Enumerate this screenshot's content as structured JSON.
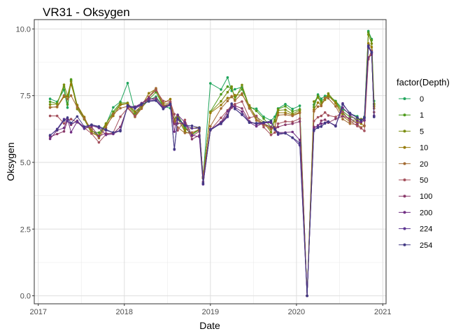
{
  "chart_data": {
    "type": "line",
    "title": "VR31  -  Oksygen",
    "xlabel": "Date",
    "ylabel": "Oksygen",
    "xlim": [
      "2016-12-15",
      "2021-01-15"
    ],
    "ylim": [
      -0.3,
      10.35
    ],
    "x_ticks": [
      "2017-01-01",
      "2018-01-01",
      "2019-01-01",
      "2020-01-01",
      "2021-01-01"
    ],
    "x_tick_labels": [
      "2017",
      "2018",
      "2019",
      "2020",
      "2021"
    ],
    "y_ticks": [
      0,
      2.5,
      5,
      7.5,
      10
    ],
    "y_tick_labels": [
      "0.0",
      "2.5",
      "5.0",
      "7.5",
      "10.0"
    ],
    "grid": true,
    "legend": {
      "title": "factor(Depth)",
      "position": "right"
    },
    "x": [
      "2017-02-20",
      "2017-03-22",
      "2017-04-20",
      "2017-05-05",
      "2017-05-20",
      "2017-06-15",
      "2017-07-15",
      "2017-08-15",
      "2017-09-15",
      "2017-10-15",
      "2017-11-15",
      "2017-12-15",
      "2018-01-15",
      "2018-02-15",
      "2018-03-15",
      "2018-04-15",
      "2018-05-15",
      "2018-06-15",
      "2018-07-15",
      "2018-08-01",
      "2018-08-15",
      "2018-09-15",
      "2018-10-15",
      "2018-11-15",
      "2018-12-01",
      "2019-01-01",
      "2019-02-15",
      "2019-03-15",
      "2019-04-01",
      "2019-04-15",
      "2019-05-15",
      "2019-06-15",
      "2019-07-15",
      "2019-08-15",
      "2019-09-15",
      "2019-10-01",
      "2019-10-15",
      "2019-11-15",
      "2019-12-15",
      "2020-01-15",
      "2020-02-15",
      "2020-03-15",
      "2020-04-01",
      "2020-04-15",
      "2020-05-01",
      "2020-05-15",
      "2020-06-15",
      "2020-07-15",
      "2020-08-15",
      "2020-09-15",
      "2020-10-01",
      "2020-10-15",
      "2020-11-01",
      "2020-11-15",
      "2020-11-25"
    ],
    "series": [
      {
        "name": "0",
        "color": "#1fa55c",
        "values": [
          7.38,
          7.27,
          7.72,
          7.05,
          8.07,
          7.15,
          6.63,
          6.21,
          6.0,
          6.42,
          7.06,
          7.27,
          7.97,
          6.9,
          7.05,
          7.34,
          7.46,
          7.1,
          7.03,
          6.62,
          6.78,
          6.31,
          6.04,
          6.22,
          4.47,
          7.96,
          7.73,
          8.18,
          7.68,
          7.74,
          7.82,
          7.05,
          7.01,
          6.71,
          6.57,
          6.71,
          7.02,
          7.18,
          7.0,
          7.12,
          0.0,
          7.16,
          7.54,
          7.38,
          7.49,
          7.51,
          7.3,
          7.0,
          6.82,
          6.73,
          6.5,
          6.71,
          9.92,
          9.62,
          7.3
        ]
      },
      {
        "name": "1",
        "color": "#4e9b1c",
        "values": [
          7.27,
          7.21,
          7.84,
          7.17,
          8.11,
          7.12,
          6.66,
          6.16,
          6.11,
          6.43,
          6.9,
          7.23,
          7.23,
          6.83,
          7.05,
          7.36,
          7.63,
          7.1,
          7.14,
          6.61,
          6.77,
          6.27,
          6.07,
          6.21,
          4.4,
          6.9,
          7.55,
          7.84,
          7.77,
          7.46,
          7.74,
          7.11,
          6.93,
          6.64,
          6.33,
          6.6,
          7.0,
          7.1,
          6.91,
          6.99,
          0.0,
          7.07,
          7.49,
          7.29,
          7.42,
          7.48,
          7.28,
          6.92,
          6.7,
          6.64,
          6.59,
          6.66,
          9.87,
          9.58,
          7.2
        ]
      },
      {
        "name": "5",
        "color": "#7a8d0f",
        "values": [
          7.17,
          7.18,
          7.91,
          7.5,
          8.03,
          7.0,
          6.61,
          6.09,
          6.01,
          6.46,
          6.83,
          7.18,
          7.2,
          6.74,
          7.06,
          7.45,
          7.72,
          7.12,
          7.2,
          6.49,
          6.64,
          6.15,
          6.05,
          6.26,
          4.42,
          6.88,
          7.29,
          7.63,
          7.84,
          7.35,
          7.9,
          7.08,
          6.7,
          6.51,
          6.13,
          6.54,
          6.95,
          6.97,
          6.82,
          6.95,
          0.0,
          7.28,
          7.43,
          7.23,
          7.35,
          7.58,
          7.25,
          6.83,
          6.6,
          6.57,
          6.62,
          6.58,
          9.79,
          9.45,
          7.17
        ]
      },
      {
        "name": "10",
        "color": "#977b09",
        "values": [
          7.07,
          7.07,
          7.46,
          7.47,
          7.92,
          7.15,
          6.7,
          6.12,
          5.97,
          6.39,
          6.74,
          7.15,
          7.21,
          6.9,
          7.12,
          7.59,
          7.75,
          7.21,
          7.37,
          6.54,
          6.75,
          6.21,
          6.28,
          6.31,
          4.43,
          6.85,
          7.15,
          7.41,
          7.45,
          7.52,
          7.53,
          7.14,
          6.6,
          6.47,
          6.27,
          6.32,
          6.86,
          6.86,
          6.78,
          6.88,
          0.0,
          6.98,
          7.24,
          7.14,
          7.35,
          7.5,
          7.21,
          6.73,
          6.52,
          6.52,
          6.45,
          6.36,
          9.46,
          9.32,
          7.1
        ]
      },
      {
        "name": "20",
        "color": "#a36b33",
        "values": [
          7.05,
          7.09,
          7.51,
          7.37,
          7.5,
          7.06,
          6.64,
          6.23,
          5.91,
          6.3,
          6.81,
          7.03,
          7.1,
          6.7,
          7.01,
          7.46,
          7.78,
          7.17,
          7.25,
          6.48,
          6.31,
          6.1,
          6.12,
          6.23,
          4.41,
          6.35,
          7.02,
          7.3,
          7.48,
          7.31,
          7.58,
          7.02,
          6.57,
          6.41,
          6.24,
          6.32,
          6.77,
          6.79,
          6.74,
          6.85,
          0.0,
          6.91,
          7.09,
          7.11,
          7.42,
          7.4,
          7.1,
          6.62,
          6.45,
          6.42,
          6.31,
          6.38,
          8.9,
          9.19,
          7.02
        ]
      },
      {
        "name": "50",
        "color": "#a4505c",
        "values": [
          6.74,
          6.74,
          6.46,
          6.59,
          6.62,
          6.5,
          6.3,
          6.08,
          5.75,
          6.05,
          6.12,
          6.71,
          7.03,
          6.74,
          7.21,
          7.45,
          7.7,
          7.3,
          7.28,
          6.81,
          6.2,
          6.59,
          5.98,
          6.16,
          4.44,
          6.21,
          6.67,
          6.95,
          7.15,
          7.18,
          7.28,
          6.67,
          6.74,
          6.32,
          6.03,
          6.12,
          6.45,
          6.53,
          6.52,
          6.64,
          0.0,
          6.55,
          6.69,
          6.74,
          6.87,
          6.76,
          6.7,
          6.89,
          6.55,
          6.36,
          6.28,
          6.18,
          8.86,
          9.1,
          6.88
        ]
      },
      {
        "name": "100",
        "color": "#8a3a6a",
        "values": [
          5.96,
          6.06,
          6.16,
          6.56,
          6.41,
          6.56,
          6.28,
          6.33,
          5.98,
          6.09,
          6.08,
          6.33,
          7.07,
          7.04,
          7.22,
          7.35,
          7.41,
          7.08,
          7.21,
          6.44,
          6.46,
          6.45,
          5.87,
          6.01,
          4.27,
          6.2,
          6.49,
          6.79,
          7.05,
          7.12,
          7.02,
          6.54,
          6.43,
          6.45,
          6.33,
          6.24,
          6.33,
          6.41,
          6.45,
          6.53,
          0.0,
          6.33,
          6.34,
          6.56,
          6.6,
          6.49,
          6.63,
          6.73,
          6.65,
          6.44,
          6.52,
          6.57,
          8.93,
          9.03,
          6.75
        ]
      },
      {
        "name": "200",
        "color": "#712f83",
        "values": [
          5.88,
          6.2,
          6.29,
          6.63,
          6.13,
          6.53,
          6.33,
          6.38,
          6.29,
          6.03,
          6.06,
          6.21,
          7.09,
          7.09,
          7.21,
          7.4,
          7.34,
          7.05,
          7.17,
          6.15,
          6.78,
          6.5,
          6.02,
          5.96,
          4.18,
          6.22,
          6.51,
          6.91,
          7.1,
          7.06,
          6.9,
          6.5,
          6.35,
          6.48,
          6.48,
          6.28,
          6.12,
          6.12,
          6.14,
          5.84,
          0.0,
          6.27,
          6.39,
          6.45,
          6.48,
          6.52,
          6.38,
          7.05,
          6.78,
          6.56,
          6.51,
          6.58,
          9.31,
          9.09,
          6.71
        ]
      },
      {
        "name": "224",
        "color": "#5b3491",
        "values": [
          6.0,
          6.25,
          6.62,
          6.55,
          6.46,
          6.52,
          6.26,
          6.41,
          6.31,
          6.2,
          6.12,
          6.2,
          7.11,
          7.02,
          7.15,
          7.31,
          7.33,
          7.01,
          7.15,
          5.48,
          6.61,
          6.39,
          6.28,
          6.28,
          4.18,
          6.25,
          6.44,
          6.7,
          7.19,
          7.01,
          6.78,
          6.52,
          6.44,
          6.48,
          6.52,
          6.24,
          6.04,
          6.09,
          5.92,
          5.64,
          0.0,
          6.18,
          6.34,
          6.34,
          6.48,
          6.53,
          6.35,
          7.21,
          6.82,
          6.68,
          6.58,
          6.66,
          9.38,
          9.14,
          6.73
        ]
      },
      {
        "name": "254",
        "color": "#433a84",
        "values": [
          6.02,
          6.22,
          6.57,
          6.68,
          6.47,
          6.72,
          6.34,
          6.41,
          6.35,
          6.23,
          6.12,
          6.17,
          7.14,
          7.05,
          7.18,
          7.28,
          7.31,
          7.0,
          7.18,
          5.5,
          6.65,
          6.38,
          6.37,
          6.3,
          4.22,
          6.21,
          6.46,
          6.74,
          7.2,
          7.0,
          6.8,
          6.49,
          6.47,
          6.5,
          6.55,
          6.23,
          6.09,
          6.09,
          5.93,
          5.73,
          0.0,
          6.21,
          6.3,
          6.35,
          6.46,
          6.52,
          6.36,
          7.17,
          6.85,
          6.68,
          6.58,
          6.68,
          9.35,
          9.12,
          6.7
        ]
      }
    ]
  }
}
